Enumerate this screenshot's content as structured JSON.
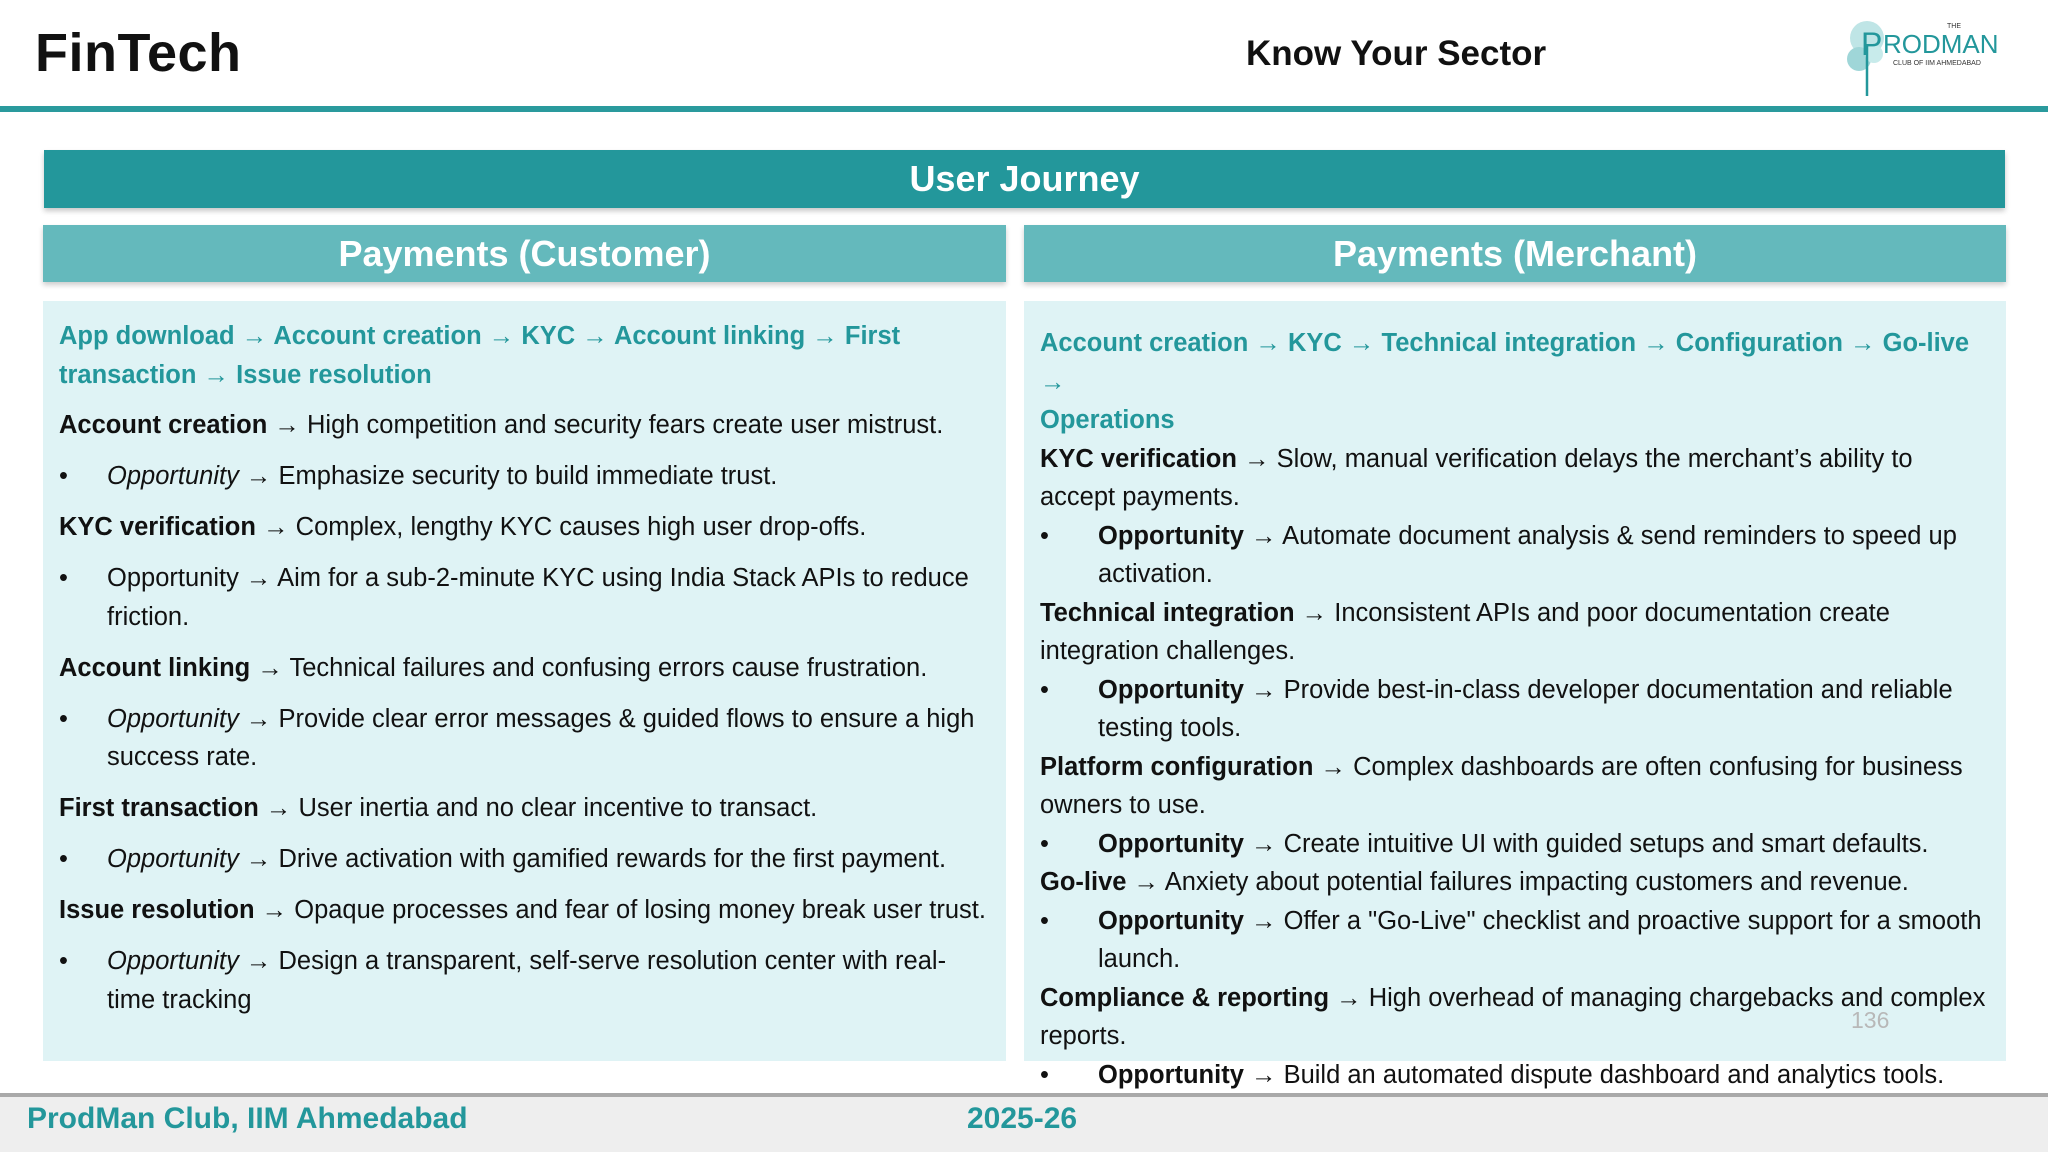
{
  "header": {
    "title": "FinTech",
    "subtitle": "Know Your Sector",
    "logo_text": {
      "the": "THE",
      "name": "RODMAN",
      "initial": "P",
      "tagline": "CLUB OF IIM AHMEDABAD"
    }
  },
  "banner": {
    "title": "User Journey"
  },
  "customer": {
    "heading": "Payments (Customer)",
    "flow_line1": [
      "App download",
      "Account creation",
      "KYC",
      "Account linking",
      "First"
    ],
    "flow_line2": [
      "transaction",
      "Issue resolution"
    ],
    "arrow": "→",
    "sections": [
      {
        "title": "Account creation",
        "text": "High competition and security fears create user mistrust.",
        "opp_label": "Opportunity",
        "opp_text": "Emphasize security to build immediate trust."
      },
      {
        "title": "KYC verification",
        "text": "Complex, lengthy KYC causes high user drop-offs.",
        "opp_label": "Opportunity",
        "opp_text": "Aim for a sub-2-minute KYC using India Stack APIs to reduce friction."
      },
      {
        "title": "Account linking",
        "text": "Technical failures and confusing errors cause frustration.",
        "opp_label": "Opportunity",
        "opp_text": "Provide clear error messages & guided flows to ensure a high success rate."
      },
      {
        "title": "First transaction",
        "text": "User inertia and no clear incentive to transact.",
        "opp_label": "Opportunity",
        "opp_text": "Drive activation with gamified rewards for the first payment."
      },
      {
        "title": "Issue resolution",
        "text": "Opaque processes and fear of losing money break user trust.",
        "opp_label": "Opportunity",
        "opp_text": "Design a transparent, self-serve resolution center with real-time tracking"
      }
    ]
  },
  "merchant": {
    "heading": "Payments (Merchant)",
    "flow_line1": [
      "Account creation",
      "KYC",
      "Technical integration",
      "Configuration",
      "Go-live"
    ],
    "flow_line2": [
      "Operations"
    ],
    "arrow": "→",
    "sections": [
      {
        "title": "KYC verification",
        "text": "Slow, manual verification delays the merchant’s ability to accept payments.",
        "opp_label": "Opportunity",
        "opp_text": "Automate document analysis & send reminders to speed up activation."
      },
      {
        "title": "Technical integration",
        "text": "Inconsistent APIs and poor documentation create integration challenges.",
        "opp_label": "Opportunity",
        "opp_text": "Provide best-in-class developer documentation and reliable testing tools."
      },
      {
        "title": "Platform configuration",
        "text": "Complex dashboards are often confusing for business owners to use.",
        "opp_label": "Opportunity",
        "opp_text": "Create intuitive UI with guided setups and smart defaults."
      },
      {
        "title": "Go-live",
        "text": "Anxiety about potential failures impacting customers and revenue.",
        "opp_label": "Opportunity",
        "opp_text": "Offer a \"Go-Live\" checklist and proactive support for a smooth launch."
      },
      {
        "title": "Compliance & reporting",
        "text": "High overhead of managing chargebacks and complex reports.",
        "opp_label": "Opportunity",
        "opp_text": "Build an automated dispute dashboard and analytics tools."
      }
    ]
  },
  "page_number": "136",
  "footer": {
    "org": "ProdMan Club, IIM Ahmedabad",
    "year": "2025-26"
  },
  "colors": {
    "teal": "#23979b",
    "teal_light": "#64b9bc",
    "panel_bg": "#dff3f5",
    "rule": "#2a9a9d"
  }
}
